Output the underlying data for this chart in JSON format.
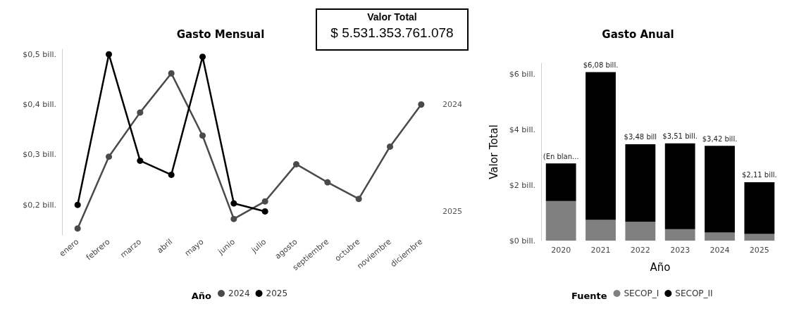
{
  "chart_data": [
    {
      "type": "line",
      "title": "Gasto Mensual",
      "categories": [
        "enero",
        "febrero",
        "marzo",
        "abril",
        "mayo",
        "junio",
        "julio",
        "agosto",
        "septiembre",
        "octubre",
        "noviembre",
        "diciembre"
      ],
      "series": [
        {
          "name": "2024",
          "color": "#4a4a4a",
          "values": [
            0.153,
            0.296,
            0.384,
            0.462,
            0.338,
            0.172,
            0.207,
            0.281,
            0.245,
            0.212,
            0.316,
            0.4
          ]
        },
        {
          "name": "2025",
          "color": "#000000",
          "values": [
            0.2,
            0.5,
            0.288,
            0.26,
            0.495,
            0.203,
            0.187,
            null,
            null,
            null,
            null,
            null
          ]
        }
      ],
      "ylim": [
        0.14,
        0.51
      ],
      "yticks": [
        {
          "value": 0.2,
          "label": "$0,2 bill."
        },
        {
          "value": 0.3,
          "label": "$0,3 bill."
        },
        {
          "value": 0.4,
          "label": "$0,4 bill."
        },
        {
          "value": 0.5,
          "label": "$0,5 bill."
        }
      ],
      "legend": "bottom",
      "legend_title": "Año",
      "marker": "circle",
      "grid": false
    },
    {
      "type": "other",
      "title": "Valor Total",
      "annotations": [
        "$ 5.531.353.761.078"
      ]
    },
    {
      "type": "bar",
      "title": "Gasto Anual",
      "categories": [
        "2020",
        "2021",
        "2022",
        "2023",
        "2024",
        "2025"
      ],
      "stacked": true,
      "series": [
        {
          "name": "SECOP_I",
          "color": "#808080",
          "values": [
            1.43,
            0.75,
            0.68,
            0.41,
            0.29,
            0.24
          ]
        },
        {
          "name": "SECOP_II",
          "color": "#000000",
          "values": [
            1.36,
            5.33,
            2.8,
            3.1,
            3.13,
            1.87
          ]
        }
      ],
      "totals": [
        "(En blan...",
        "$6,08 bill.",
        "$3,48 bill",
        "$3,51 bill.",
        "$3,42 bill.",
        "$2,11 bill."
      ],
      "ylim": [
        0,
        6.4
      ],
      "yticks": [
        {
          "value": 0,
          "label": "$0 bill."
        },
        {
          "value": 2,
          "label": "$2 bill."
        },
        {
          "value": 4,
          "label": "$4 bill."
        },
        {
          "value": 6,
          "label": "$6 bill."
        }
      ],
      "xlabel": "Año",
      "ylabel": "Valor Total",
      "legend": "bottom",
      "legend_title": "Fuente",
      "grid": false
    }
  ]
}
